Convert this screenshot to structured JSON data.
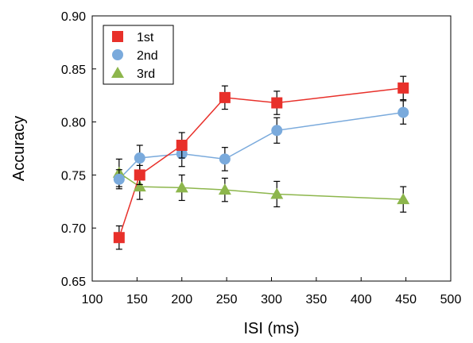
{
  "chart_data": {
    "type": "line",
    "xlabel": "ISI (ms)",
    "ylabel": "Accuracy",
    "xlim": [
      100,
      500
    ],
    "ylim": [
      0.65,
      0.9
    ],
    "xticks": [
      "100",
      "150",
      "200",
      "250",
      "300",
      "350",
      "400",
      "450",
      "500"
    ],
    "yticks": [
      "0.65",
      "0.70",
      "0.75",
      "0.80",
      "0.85",
      "0.90"
    ],
    "grid": false,
    "legend_position": "top-left",
    "series": [
      {
        "name": "1st",
        "marker": "square",
        "color": "#e8302a",
        "x": [
          130,
          153,
          200,
          248,
          306,
          447
        ],
        "y": [
          0.691,
          0.75,
          0.778,
          0.823,
          0.818,
          0.832
        ],
        "err": [
          0.011,
          0.009,
          0.012,
          0.011,
          0.011,
          0.011
        ]
      },
      {
        "name": "2nd",
        "marker": "circle",
        "color": "#7aaadc",
        "x": [
          130,
          153,
          200,
          248,
          306,
          447
        ],
        "y": [
          0.746,
          0.766,
          0.77,
          0.765,
          0.792,
          0.809
        ],
        "err": [
          0.009,
          0.012,
          0.012,
          0.011,
          0.012,
          0.011
        ]
      },
      {
        "name": "3rd",
        "marker": "triangle",
        "color": "#8db64c",
        "x": [
          130,
          153,
          200,
          248,
          306,
          447
        ],
        "y": [
          0.752,
          0.739,
          0.738,
          0.736,
          0.732,
          0.727
        ],
        "err": [
          0.013,
          0.012,
          0.012,
          0.011,
          0.012,
          0.012
        ]
      }
    ]
  }
}
